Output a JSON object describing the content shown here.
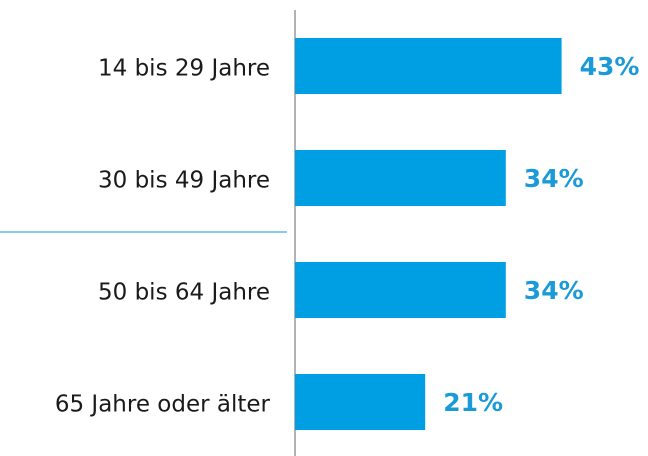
{
  "chart_data": {
    "type": "bar",
    "orientation": "horizontal",
    "categories": [
      "14 bis 29 Jahre",
      "30 bis 49 Jahre",
      "50 bis 64 Jahre",
      "65 Jahre oder älter"
    ],
    "values": [
      43,
      34,
      34,
      21
    ],
    "value_labels": [
      "43%",
      "34%",
      "34%",
      "21%"
    ],
    "color": "#009fe3",
    "xlim": [
      0,
      50
    ]
  }
}
